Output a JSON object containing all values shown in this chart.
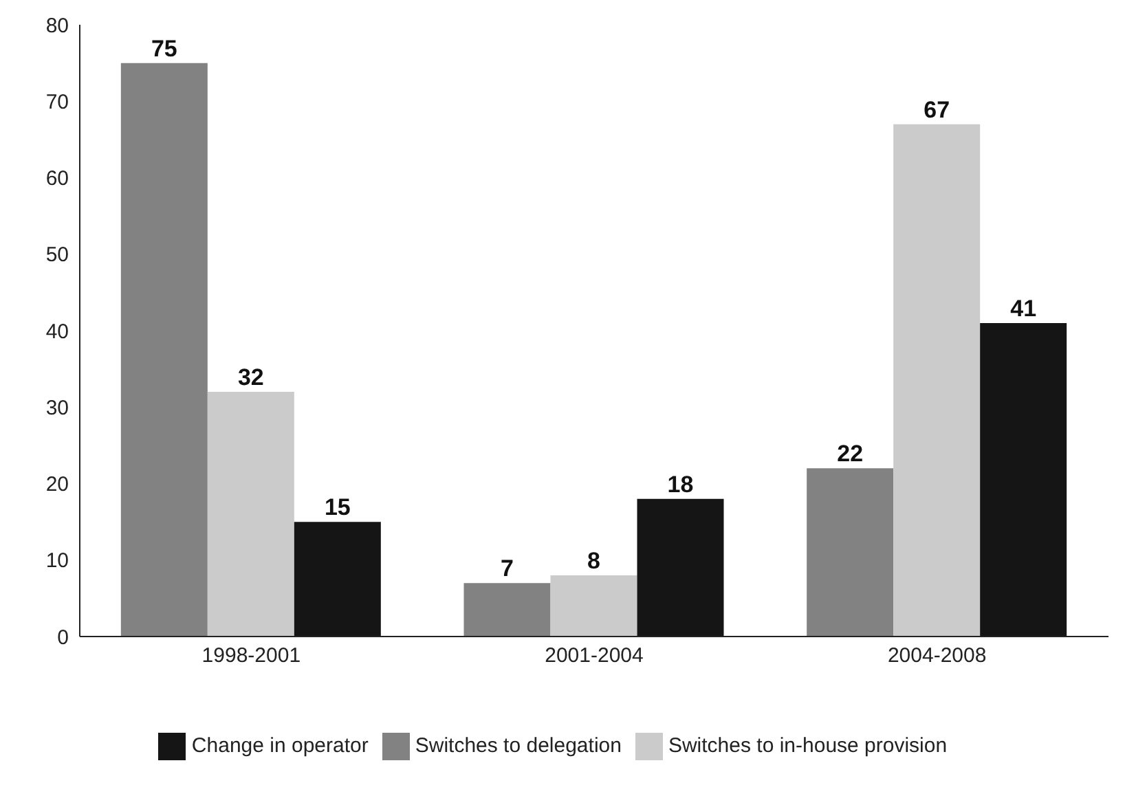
{
  "chart_data": {
    "type": "bar",
    "categories": [
      "1998-2001",
      "2001-2004",
      "2004-2008"
    ],
    "series": [
      {
        "name": "Switches to delegation",
        "color": "#828282",
        "values": [
          75,
          7,
          22
        ]
      },
      {
        "name": "Switches to in-house provision",
        "color": "#cbcbcb",
        "values": [
          32,
          8,
          67
        ]
      },
      {
        "name": "Change in operator",
        "color": "#151515",
        "values": [
          15,
          18,
          41
        ]
      }
    ],
    "ylim": [
      0,
      80
    ],
    "yticks": [
      0,
      10,
      20,
      30,
      40,
      50,
      60,
      70,
      80
    ],
    "grid": false,
    "legend": "bottom",
    "data_labels": true
  }
}
